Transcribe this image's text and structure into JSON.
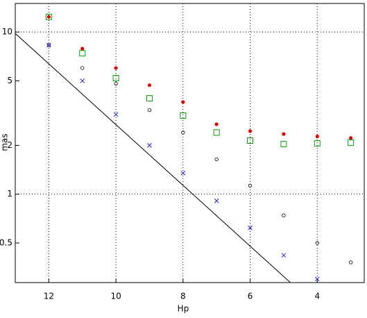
{
  "chart_data": {
    "type": "scatter",
    "x_label": "Hp",
    "y_label": "mas",
    "xlim": [
      13,
      2.6
    ],
    "xticks": [
      12,
      10,
      8,
      6,
      4
    ],
    "ylim": [
      0.285,
      15
    ],
    "yticks": [
      0.5,
      1,
      2,
      5,
      10
    ],
    "log_y": true,
    "grid": true,
    "x": [
      12,
      11,
      10,
      9,
      8,
      7,
      6,
      5,
      4,
      3
    ],
    "series": [
      {
        "color": "#e00000",
        "marker": "dot",
        "values": [
          12.4,
          7.9,
          6.0,
          4.7,
          3.7,
          2.7,
          2.45,
          2.35,
          2.27,
          2.22
        ]
      },
      {
        "color": "#00a000",
        "marker": "square",
        "values": [
          12.4,
          7.4,
          5.2,
          3.9,
          3.05,
          2.4,
          2.14,
          2.04,
          2.06,
          2.08
        ]
      },
      {
        "color": "#000000",
        "marker": "circle",
        "values": [
          8.3,
          6.0,
          4.8,
          3.3,
          2.4,
          1.64,
          1.13,
          0.74,
          0.5,
          0.38
        ]
      },
      {
        "color": "#2020d0",
        "marker": "cross",
        "values": [
          8.3,
          5.0,
          3.1,
          2.0,
          1.35,
          0.91,
          0.62,
          0.42,
          0.3,
          null
        ]
      },
      {
        "color": "#000000",
        "marker": "line",
        "x": [
          13,
          4.8
        ],
        "values": [
          9.8,
          0.285
        ]
      }
    ]
  }
}
